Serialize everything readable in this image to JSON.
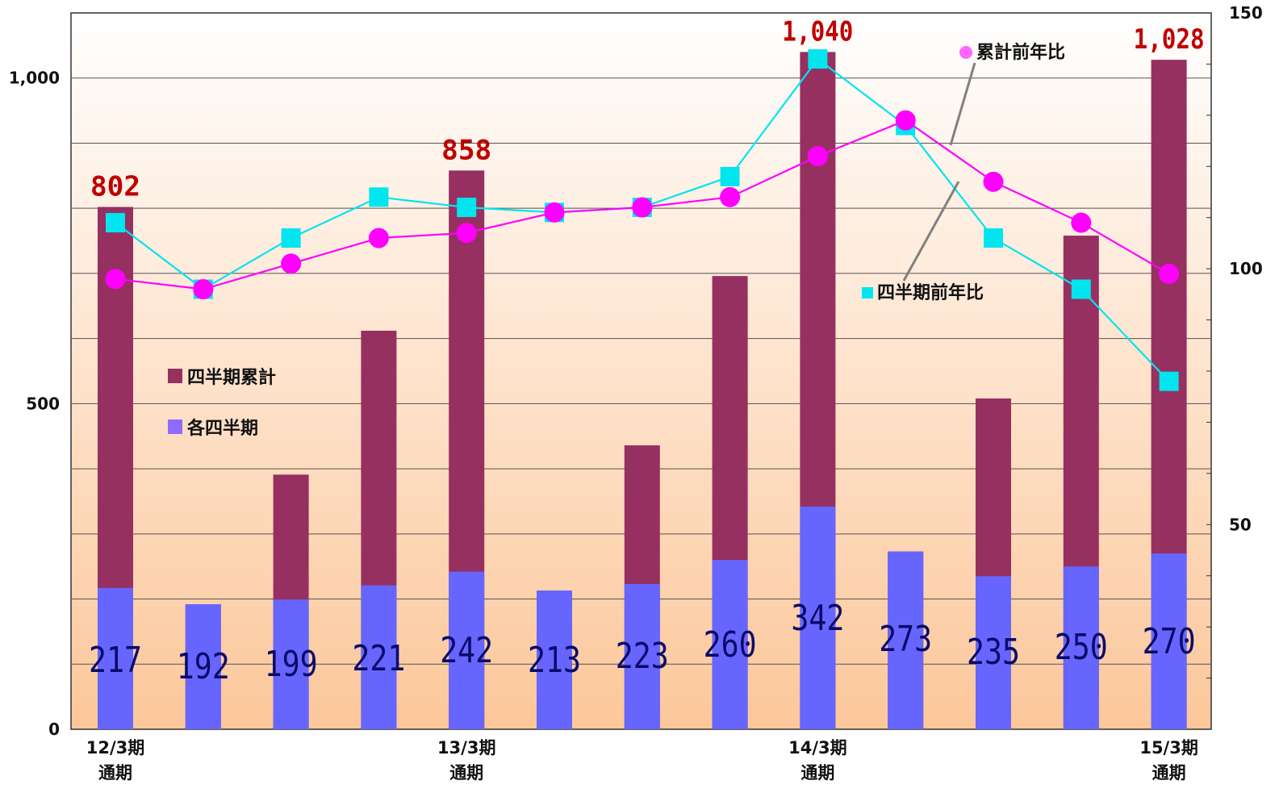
{
  "chart_data": {
    "type": "bar",
    "categories": [
      "12/3期\n通期",
      "",
      "",
      "",
      "13/3期\n通期",
      "",
      "",
      "",
      "14/3期\n通期",
      "",
      "",
      "",
      "15/3期\n通期"
    ],
    "series": [
      {
        "name": "四半期累計",
        "kind": "bar",
        "axis": "left",
        "values": [
          802,
          192,
          391,
          612,
          858,
          213,
          436,
          696,
          1040,
          273,
          508,
          758,
          1028
        ],
        "color": "#963060"
      },
      {
        "name": "各四半期",
        "kind": "bar",
        "axis": "left",
        "values": [
          217,
          192,
          199,
          221,
          242,
          213,
          223,
          260,
          342,
          273,
          235,
          250,
          270
        ],
        "color": "#6666ff"
      },
      {
        "name": "累計前年比",
        "kind": "line",
        "axis": "right",
        "values": [
          98,
          96,
          101,
          106,
          107,
          111,
          112,
          114,
          122,
          129,
          117,
          109,
          99
        ],
        "color": "#ff00ff"
      },
      {
        "name": "四半期前年比",
        "kind": "line",
        "axis": "right",
        "values": [
          109,
          96,
          106,
          114,
          112,
          111,
          112,
          118,
          141,
          128,
          106,
          96,
          78
        ],
        "color": "#00e5ee"
      }
    ],
    "quarter_labels": [
      "217",
      "192",
      "199",
      "221",
      "242",
      "213",
      "223",
      "260",
      "342",
      "273",
      "235",
      "250",
      "270"
    ],
    "total_labels": [
      {
        "index": 0,
        "text": "802"
      },
      {
        "index": 4,
        "text": "858"
      },
      {
        "index": 8,
        "text": "1,040"
      },
      {
        "index": 12,
        "text": "1,028"
      }
    ],
    "y_left": {
      "min": 0,
      "max": 1100,
      "ticks": [
        0,
        500,
        1000
      ],
      "tick_labels": [
        "0",
        "500",
        "1,000"
      ]
    },
    "y_right": {
      "min": 10,
      "max": 150,
      "ticks": [
        50,
        100,
        150
      ],
      "tick_labels": [
        "50",
        "100",
        "150"
      ]
    },
    "grid": true,
    "background": {
      "top": "#ffffff",
      "bottom": "#fcc79a"
    },
    "legend": [
      {
        "label": "四半期累計",
        "color": "#963060"
      },
      {
        "label": "各四半期",
        "color": "#8f6bff"
      },
      {
        "label": "累計前年比",
        "color": "#ff66ff"
      },
      {
        "label": "四半期前年比",
        "color": "#00e5ee"
      }
    ],
    "title": "",
    "xlabel": "",
    "ylabel": ""
  }
}
